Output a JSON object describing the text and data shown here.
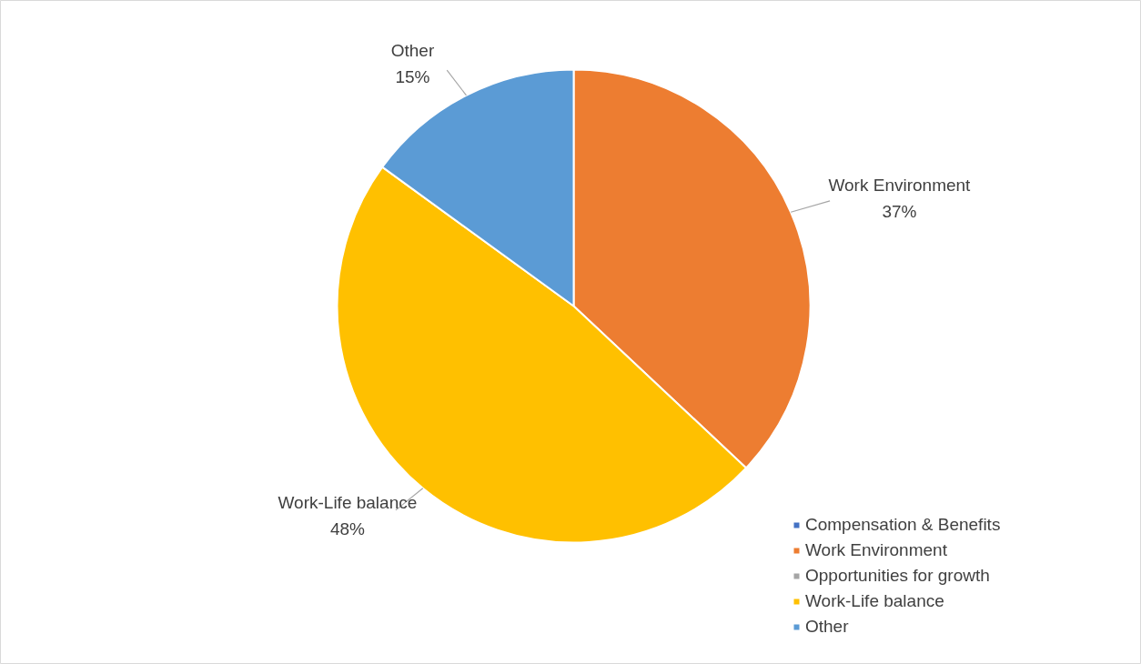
{
  "chart_data": {
    "type": "pie",
    "categories": [
      "Compensation & Benefits",
      "Work Environment",
      "Opportunities for growth",
      "Work-Life balance",
      "Other"
    ],
    "values": [
      0,
      37,
      0,
      48,
      15
    ],
    "colors": [
      "#4472c4",
      "#ed7d31",
      "#a5a5a5",
      "#ffc000",
      "#5b9bd5"
    ],
    "value_labels": [
      null,
      "37%",
      null,
      "48%",
      "15%"
    ],
    "legend": "bottom right"
  }
}
